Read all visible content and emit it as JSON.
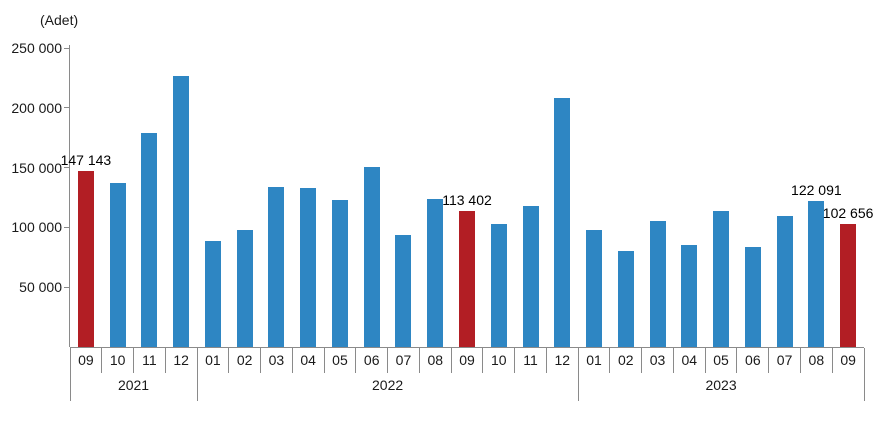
{
  "chart_data": {
    "type": "bar",
    "unit_label": "(Adet)",
    "ylim": [
      0,
      250000
    ],
    "ytick_interval": 50000,
    "ytick_labels": [
      "50 000",
      "100 000",
      "150 000",
      "200 000",
      "250 000"
    ],
    "grid": false,
    "legend": false,
    "bar_color": "#2E86C3",
    "highlight_color": "#B21E24",
    "groups": [
      {
        "year": "2021",
        "months": [
          "09",
          "10",
          "11",
          "12"
        ]
      },
      {
        "year": "2022",
        "months": [
          "01",
          "02",
          "03",
          "04",
          "05",
          "06",
          "07",
          "08",
          "09",
          "10",
          "11",
          "12"
        ]
      },
      {
        "year": "2023",
        "months": [
          "01",
          "02",
          "03",
          "04",
          "05",
          "06",
          "07",
          "08",
          "09"
        ]
      }
    ],
    "bars": [
      {
        "year": "2021",
        "month": "09",
        "value": 147143,
        "highlight": true,
        "data_label": "147 143"
      },
      {
        "year": "2021",
        "month": "10",
        "value": 137401,
        "highlight": false,
        "data_label": null
      },
      {
        "year": "2021",
        "month": "11",
        "value": 178814,
        "highlight": false,
        "data_label": null
      },
      {
        "year": "2021",
        "month": "12",
        "value": 226503,
        "highlight": false,
        "data_label": null
      },
      {
        "year": "2022",
        "month": "01",
        "value": 88306,
        "highlight": false,
        "data_label": null
      },
      {
        "year": "2022",
        "month": "02",
        "value": 97587,
        "highlight": false,
        "data_label": null
      },
      {
        "year": "2022",
        "month": "03",
        "value": 134170,
        "highlight": false,
        "data_label": null
      },
      {
        "year": "2022",
        "month": "04",
        "value": 133058,
        "highlight": false,
        "data_label": null
      },
      {
        "year": "2022",
        "month": "05",
        "value": 122768,
        "highlight": false,
        "data_label": null
      },
      {
        "year": "2022",
        "month": "06",
        "value": 150509,
        "highlight": false,
        "data_label": null
      },
      {
        "year": "2022",
        "month": "07",
        "value": 93902,
        "highlight": false,
        "data_label": null
      },
      {
        "year": "2022",
        "month": "08",
        "value": 123491,
        "highlight": false,
        "data_label": null
      },
      {
        "year": "2022",
        "month": "09",
        "value": 113402,
        "highlight": true,
        "data_label": "113 402"
      },
      {
        "year": "2022",
        "month": "10",
        "value": 102660,
        "highlight": false,
        "data_label": null
      },
      {
        "year": "2022",
        "month": "11",
        "value": 117806,
        "highlight": false,
        "data_label": null
      },
      {
        "year": "2022",
        "month": "12",
        "value": 207963,
        "highlight": false,
        "data_label": null
      },
      {
        "year": "2023",
        "month": "01",
        "value": 97708,
        "highlight": false,
        "data_label": null
      },
      {
        "year": "2023",
        "month": "02",
        "value": 80031,
        "highlight": false,
        "data_label": null
      },
      {
        "year": "2023",
        "month": "03",
        "value": 105476,
        "highlight": false,
        "data_label": null
      },
      {
        "year": "2023",
        "month": "04",
        "value": 85652,
        "highlight": false,
        "data_label": null
      },
      {
        "year": "2023",
        "month": "05",
        "value": 113845,
        "highlight": false,
        "data_label": null
      },
      {
        "year": "2023",
        "month": "06",
        "value": 83636,
        "highlight": false,
        "data_label": null
      },
      {
        "year": "2023",
        "month": "07",
        "value": 109548,
        "highlight": false,
        "data_label": null
      },
      {
        "year": "2023",
        "month": "08",
        "value": 122091,
        "highlight": false,
        "data_label": "122 091"
      },
      {
        "year": "2023",
        "month": "09",
        "value": 102656,
        "highlight": true,
        "data_label": "102 656"
      }
    ]
  }
}
